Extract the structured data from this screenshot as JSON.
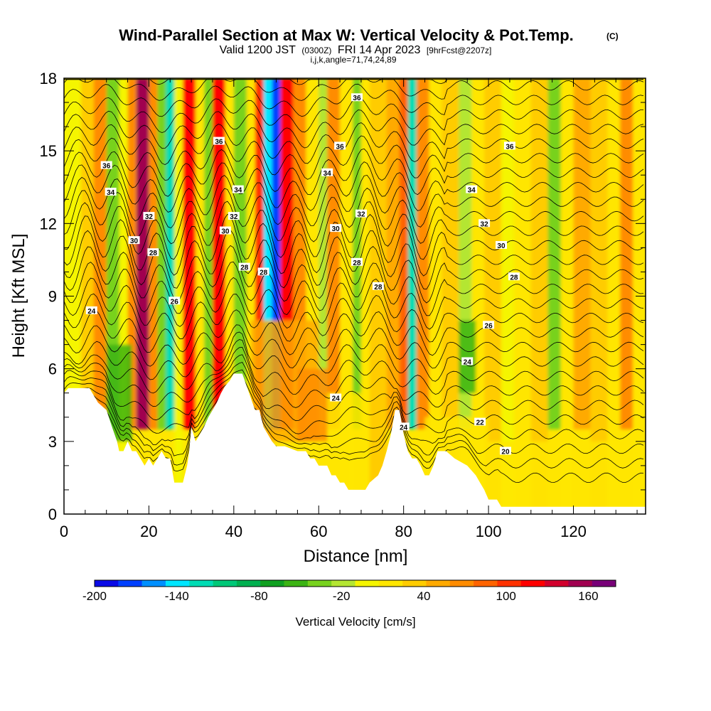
{
  "chart_data": {
    "type": "heatmap",
    "title": "Wind-Parallel Section at Max W: Vertical Velocity & Pot.Temp.",
    "title_mark": "(C)",
    "subtitle": {
      "valid": "Valid 1200 JST",
      "utc": "(0300Z)",
      "date": "FRI 14 Apr 2023",
      "forecast": "[9hrFcst@2207z]"
    },
    "index_line": "i,j,k,angle=71,74,24,89",
    "xlabel": "Distance [nm]",
    "ylabel": "Height [Kft MSL]",
    "xlim": [
      0,
      137
    ],
    "ylim": [
      0,
      18
    ],
    "x_ticks": [
      0,
      20,
      40,
      60,
      80,
      100,
      120
    ],
    "x_tick_labels": [
      "0",
      "20",
      "40",
      "60",
      "80",
      "100",
      "120"
    ],
    "y_ticks": [
      0,
      3,
      6,
      9,
      12,
      15,
      18
    ],
    "y_tick_labels": [
      "0",
      "3",
      "6",
      "9",
      "12",
      "15",
      "18"
    ],
    "grid": false,
    "colorbar": {
      "label": "Vertical Velocity [cm/s]",
      "range": [
        -200,
        180
      ],
      "step": 20,
      "tick_values": [
        -200,
        -140,
        -80,
        -20,
        40,
        100,
        160
      ],
      "tick_labels": [
        "-200",
        "-140",
        "-80",
        "-20",
        "40",
        "100",
        "160"
      ],
      "colors": [
        "#0a0ae6",
        "#0040ff",
        "#0090ff",
        "#00e6ff",
        "#00dcb4",
        "#00c878",
        "#00b050",
        "#10a020",
        "#3cb414",
        "#78d21e",
        "#b4e632",
        "#f5f500",
        "#ffe600",
        "#ffcc00",
        "#ffaa00",
        "#ff8c00",
        "#ff6400",
        "#ff3200",
        "#ff0000",
        "#d2002d",
        "#a00050",
        "#780078"
      ]
    },
    "terrain_kft": [
      [
        0,
        5.0
      ],
      [
        1,
        5.2
      ],
      [
        6,
        5.2
      ],
      [
        8,
        4.6
      ],
      [
        10,
        4.3
      ],
      [
        11.5,
        3.5
      ],
      [
        12.5,
        3.0
      ],
      [
        13,
        2.6
      ],
      [
        14,
        2.6
      ],
      [
        15,
        3.0
      ],
      [
        16,
        2.6
      ],
      [
        17,
        2.6
      ],
      [
        18,
        2.3
      ],
      [
        19,
        2.0
      ],
      [
        20,
        2.3
      ],
      [
        21,
        2.0
      ],
      [
        22,
        2.3
      ],
      [
        23,
        2.6
      ],
      [
        24,
        2.3
      ],
      [
        25,
        2.3
      ],
      [
        26,
        1.3
      ],
      [
        28,
        1.3
      ],
      [
        29,
        2.0
      ],
      [
        29.5,
        2.6
      ],
      [
        30,
        3.6
      ],
      [
        31,
        3.0
      ],
      [
        32,
        3.3
      ],
      [
        33,
        3.6
      ],
      [
        34,
        4.0
      ],
      [
        35,
        4.3
      ],
      [
        36,
        4.6
      ],
      [
        37,
        5.0
      ],
      [
        38,
        5.3
      ],
      [
        39,
        5.5
      ],
      [
        40,
        5.8
      ],
      [
        42,
        5.8
      ],
      [
        43,
        5.3
      ],
      [
        44,
        4.8
      ],
      [
        45,
        4.3
      ],
      [
        46,
        4.3
      ],
      [
        47,
        3.6
      ],
      [
        48,
        3.3
      ],
      [
        49,
        3.0
      ],
      [
        50,
        2.8
      ],
      [
        52,
        2.8
      ],
      [
        55,
        2.6
      ],
      [
        57,
        2.6
      ],
      [
        58,
        2.3
      ],
      [
        59,
        2.3
      ],
      [
        60,
        2.0
      ],
      [
        62,
        2.0
      ],
      [
        63,
        1.6
      ],
      [
        64,
        1.6
      ],
      [
        65,
        1.3
      ],
      [
        66,
        1.3
      ],
      [
        67,
        1.0
      ],
      [
        71,
        1.0
      ],
      [
        72,
        1.3
      ],
      [
        74,
        1.6
      ],
      [
        75,
        2.0
      ],
      [
        76,
        2.6
      ],
      [
        77,
        3.3
      ],
      [
        78,
        4.3
      ],
      [
        79,
        4.3
      ],
      [
        80,
        3.3
      ],
      [
        81,
        2.6
      ],
      [
        82,
        2.3
      ],
      [
        83,
        2.3
      ],
      [
        84,
        2.0
      ],
      [
        85,
        1.6
      ],
      [
        86,
        1.6
      ],
      [
        87,
        2.0
      ],
      [
        88,
        2.6
      ],
      [
        90,
        2.6
      ],
      [
        92,
        2.3
      ],
      [
        95,
        2.0
      ],
      [
        97,
        1.6
      ],
      [
        98,
        1.3
      ],
      [
        99,
        1.0
      ],
      [
        100,
        0.6
      ],
      [
        102,
        0.6
      ],
      [
        103,
        0.3
      ],
      [
        137,
        0.3
      ]
    ],
    "theta_contour_labels": [
      {
        "text": "36",
        "x": 69,
        "y": 17.2
      },
      {
        "text": "36",
        "x": 36.5,
        "y": 15.4
      },
      {
        "text": "36",
        "x": 65,
        "y": 15.2
      },
      {
        "text": "36",
        "x": 105,
        "y": 15.2
      },
      {
        "text": "36",
        "x": 10,
        "y": 14.4
      },
      {
        "text": "34",
        "x": 11,
        "y": 13.3
      },
      {
        "text": "34",
        "x": 41,
        "y": 13.4
      },
      {
        "text": "34",
        "x": 62,
        "y": 14.1
      },
      {
        "text": "34",
        "x": 96,
        "y": 13.4
      },
      {
        "text": "32",
        "x": 20,
        "y": 12.3
      },
      {
        "text": "32",
        "x": 40,
        "y": 12.3
      },
      {
        "text": "32",
        "x": 70,
        "y": 12.4
      },
      {
        "text": "32",
        "x": 99,
        "y": 12.0
      },
      {
        "text": "30",
        "x": 16.5,
        "y": 11.3
      },
      {
        "text": "30",
        "x": 38,
        "y": 11.7
      },
      {
        "text": "30",
        "x": 64,
        "y": 11.8
      },
      {
        "text": "30",
        "x": 103,
        "y": 11.1
      },
      {
        "text": "28",
        "x": 21,
        "y": 10.8
      },
      {
        "text": "28",
        "x": 42.5,
        "y": 10.2
      },
      {
        "text": "28",
        "x": 47,
        "y": 10.0
      },
      {
        "text": "28",
        "x": 69,
        "y": 10.4
      },
      {
        "text": "28",
        "x": 74,
        "y": 9.4
      },
      {
        "text": "28",
        "x": 106,
        "y": 9.8
      },
      {
        "text": "26",
        "x": 26,
        "y": 8.8
      },
      {
        "text": "26",
        "x": 100,
        "y": 7.8
      },
      {
        "text": "24",
        "x": 6.5,
        "y": 8.4
      },
      {
        "text": "24",
        "x": 64,
        "y": 4.8
      },
      {
        "text": "24",
        "x": 95,
        "y": 6.3
      },
      {
        "text": "24",
        "x": 80,
        "y": 3.6
      },
      {
        "text": "22",
        "x": 98,
        "y": 3.8
      },
      {
        "text": "20",
        "x": 104,
        "y": 2.6
      }
    ]
  }
}
